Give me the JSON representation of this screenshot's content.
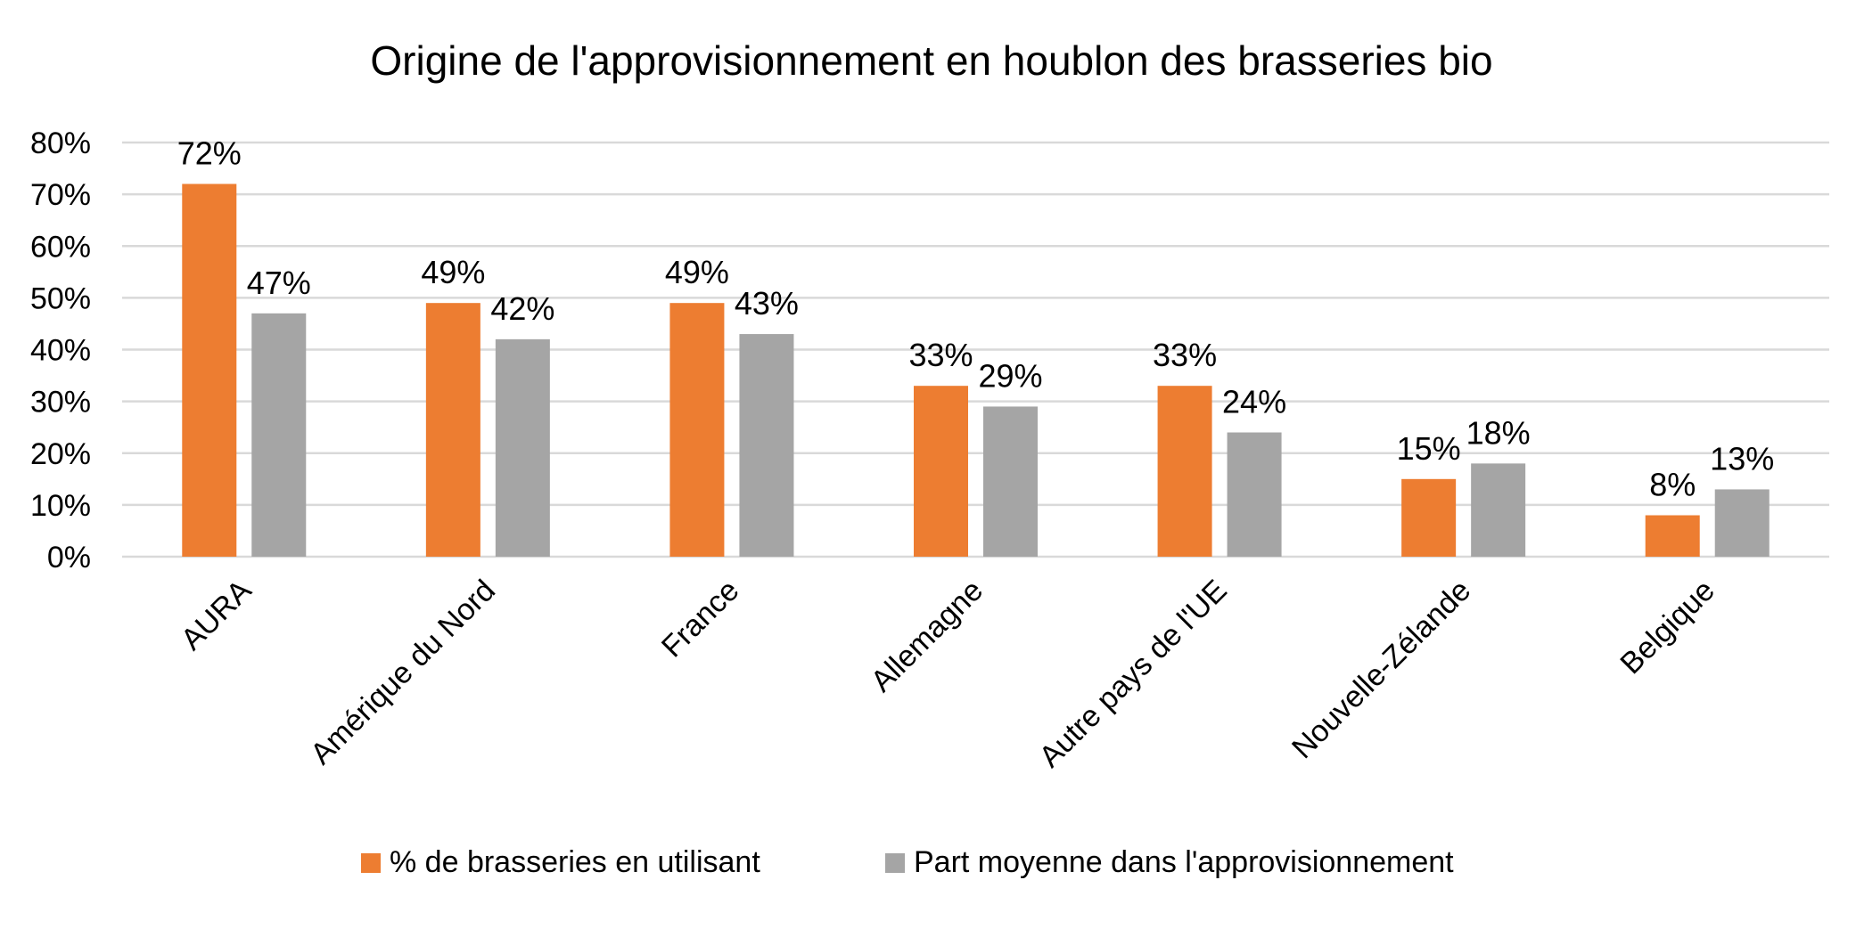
{
  "chart_data": {
    "type": "bar",
    "title": "Origine de l'approvisionnement en houblon des brasseries bio",
    "xlabel": "",
    "ylabel": "",
    "categories": [
      "AURA",
      "Amérique du Nord",
      "France",
      "Allemagne",
      "Autre pays de l'UE",
      "Nouvelle-Zélande",
      "Belgique"
    ],
    "series": [
      {
        "name": "% de brasseries en utilisant",
        "color": "#ED7D31",
        "values": [
          72,
          49,
          49,
          33,
          33,
          15,
          8
        ],
        "labels": [
          "72%",
          "49%",
          "49%",
          "33%",
          "33%",
          "15%",
          "8%"
        ]
      },
      {
        "name": "Part moyenne dans l'approvisionnement",
        "color": "#A5A5A5",
        "values": [
          47,
          42,
          43,
          29,
          24,
          18,
          13
        ],
        "labels": [
          "47%",
          "42%",
          "43%",
          "29%",
          "24%",
          "18%",
          "13%"
        ]
      }
    ],
    "ylim": [
      0,
      80
    ],
    "yticks": [
      0,
      10,
      20,
      30,
      40,
      50,
      60,
      70,
      80
    ],
    "ytick_labels": [
      "0%",
      "10%",
      "20%",
      "30%",
      "40%",
      "50%",
      "60%",
      "70%",
      "80%"
    ],
    "grid": true,
    "gridline_color": "#D9D9D9",
    "legend_position": "bottom"
  }
}
